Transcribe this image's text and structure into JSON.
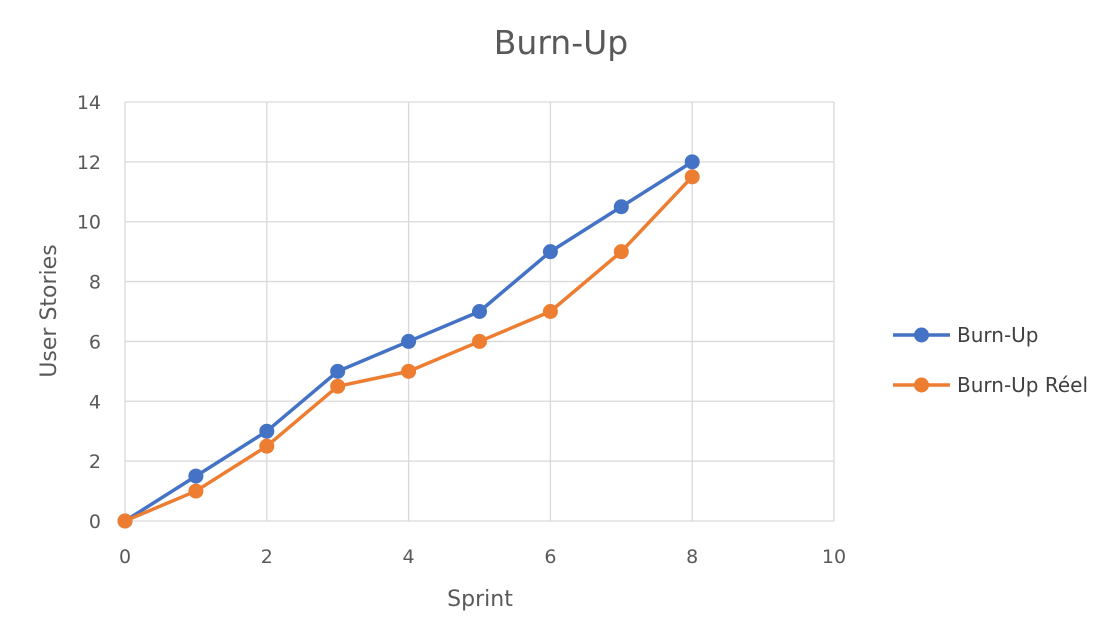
{
  "chart_data": {
    "type": "scatter",
    "title": "Burn-Up",
    "xlabel": "Sprint",
    "ylabel": "User Stories",
    "xlim": [
      0,
      10
    ],
    "ylim": [
      0,
      14
    ],
    "xticks": [
      0,
      2,
      4,
      6,
      8,
      10
    ],
    "yticks": [
      0,
      2,
      4,
      6,
      8,
      10,
      12,
      14
    ],
    "grid": true,
    "legend_position": "right",
    "series": [
      {
        "name": "Burn-Up",
        "color": "#4472c4",
        "x": [
          0,
          1,
          2,
          3,
          4,
          5,
          6,
          7,
          8
        ],
        "y": [
          0,
          1.5,
          3,
          5,
          6,
          7,
          9,
          10.5,
          12
        ]
      },
      {
        "name": "Burn-Up Réel",
        "color": "#ed7d31",
        "x": [
          0,
          1,
          2,
          3,
          4,
          5,
          6,
          7,
          8
        ],
        "y": [
          0,
          1,
          2.5,
          4.5,
          5,
          6,
          7,
          9,
          11.5
        ]
      }
    ]
  }
}
